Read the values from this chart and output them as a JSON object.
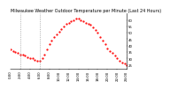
{
  "title": "Milwaukee Weather Outdoor Temperature per Minute (Last 24 Hours)",
  "title_fontsize": 3.5,
  "background_color": "#ffffff",
  "line_color": "#ff0000",
  "vline_color": "#888888",
  "y_ticks": [
    25,
    30,
    35,
    40,
    45,
    50,
    55,
    60
  ],
  "y_tick_labels": [
    "25",
    "30",
    "35",
    "40",
    "45",
    "50",
    "55",
    "60"
  ],
  "ylim": [
    22,
    65
  ],
  "xlim": [
    0,
    1439
  ],
  "vlines": [
    120,
    360
  ],
  "x_points": [
    0,
    30,
    60,
    90,
    120,
    150,
    180,
    210,
    240,
    270,
    300,
    330,
    360,
    390,
    420,
    450,
    480,
    510,
    540,
    570,
    600,
    630,
    660,
    690,
    720,
    750,
    780,
    810,
    840,
    870,
    900,
    930,
    960,
    990,
    1020,
    1050,
    1080,
    1110,
    1140,
    1170,
    1200,
    1230,
    1260,
    1290,
    1320,
    1350,
    1380,
    1410,
    1439
  ],
  "y_points": [
    37,
    36,
    35,
    34,
    33,
    33,
    32,
    31,
    30,
    30,
    29,
    28,
    28,
    30,
    33,
    37,
    41,
    44,
    47,
    49,
    51,
    53,
    55,
    57,
    58,
    59,
    60,
    61,
    61,
    60,
    59,
    58,
    57,
    56,
    54,
    52,
    50,
    47,
    44,
    41,
    38,
    36,
    34,
    32,
    30,
    28,
    27,
    26,
    25
  ],
  "markersize": 1.2,
  "tick_fontsize": 2.8,
  "x_tick_positions": [
    0,
    120,
    240,
    360,
    480,
    600,
    720,
    840,
    960,
    1080,
    1200,
    1320,
    1439
  ],
  "x_tick_labels": [
    "0:00",
    "2:00",
    "4:00",
    "6:00",
    "8:00",
    "10:00",
    "12:00",
    "14:00",
    "16:00",
    "18:00",
    "20:00",
    "22:00",
    "24:00"
  ]
}
